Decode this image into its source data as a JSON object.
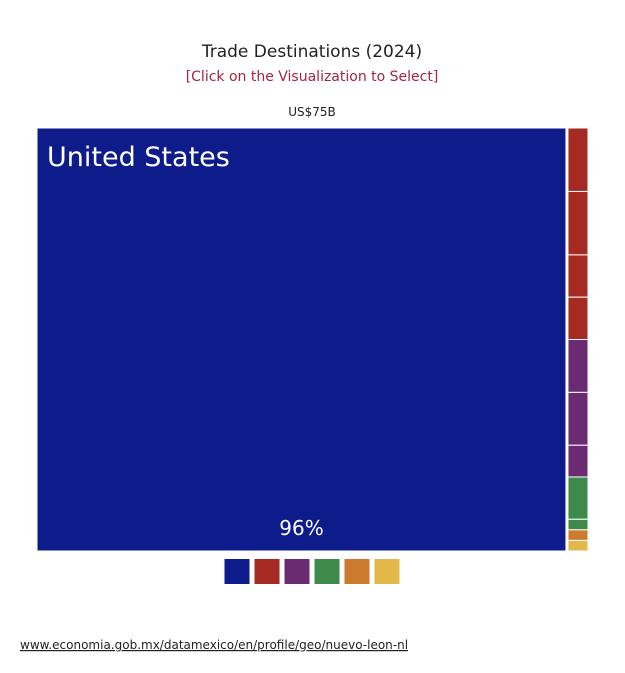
{
  "chart_data": {
    "type": "treemap",
    "title": "Trade Destinations (2024)",
    "subtitle": "[Click on the Visualization to Select]",
    "total_label": "US$75B",
    "categories": [
      "United States",
      null,
      null,
      null,
      null,
      null,
      null,
      null,
      null,
      null,
      null,
      null
    ],
    "values": [
      96,
      0.6,
      0.6,
      0.4,
      0.4,
      0.5,
      0.5,
      0.3,
      0.4,
      0.1,
      0.1,
      0.1
    ],
    "value_labels": [
      "96%",
      null,
      null,
      null,
      null,
      null,
      null,
      null,
      null,
      null,
      null,
      null
    ],
    "colors": [
      "#0d1c8a",
      "#a52a22",
      "#a52a22",
      "#a52a22",
      "#a52a22",
      "#6a2b73",
      "#6a2b73",
      "#6a2b73",
      "#3e8a4a",
      "#3e8a4a",
      "#cc7a2e",
      "#e3b84a"
    ],
    "legend_colors": [
      "#0d1c8a",
      "#a52a22",
      "#6a2b73",
      "#3e8a4a",
      "#cc7a2e",
      "#e3b84a"
    ]
  },
  "source": "www.economia.gob.mx/datamexico/en/profile/geo/nuevo-leon-nl"
}
